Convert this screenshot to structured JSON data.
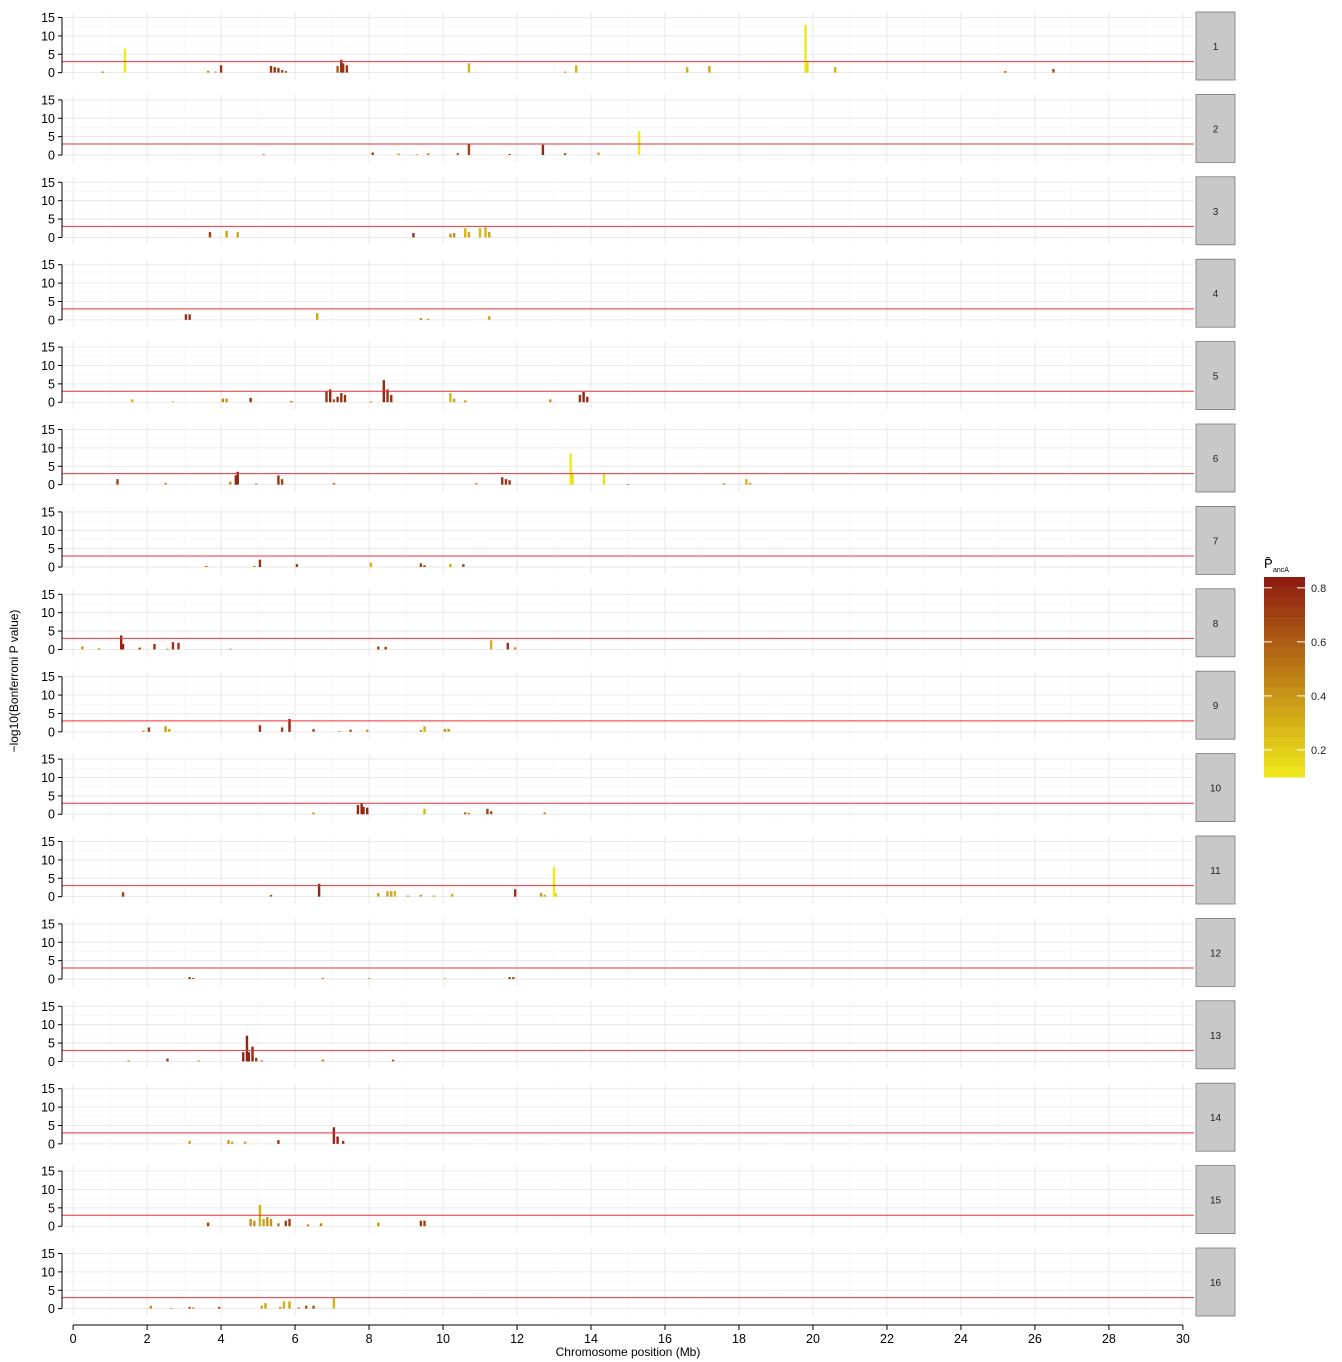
{
  "chart_data": {
    "type": "bar",
    "xlabel": "Chromosome position (Mb)",
    "ylabel": "−log10(Bonferroni P value)",
    "xlim": [
      -0.3,
      30.3
    ],
    "ylim": [
      -2,
      16.5
    ],
    "x_ticks": [
      "0",
      "2",
      "4",
      "6",
      "8",
      "10",
      "12",
      "14",
      "16",
      "18",
      "20",
      "22",
      "24",
      "26",
      "28",
      "30"
    ],
    "y_ticks": [
      "0",
      "5",
      "10",
      "15"
    ],
    "threshold": 3,
    "threshold_color": "#e8343a",
    "legend": {
      "title": "P̃",
      "title_sub": "ancA",
      "ticks": [
        "0.2",
        "0.4",
        "0.6",
        "0.8"
      ],
      "tick_values": [
        0.2,
        0.4,
        0.6,
        0.8
      ],
      "range": [
        0.1,
        0.84
      ],
      "color_low": "#f0ea1a",
      "color_high": "#8e1a12"
    },
    "panels": [
      {
        "label": "1",
        "bars": [
          [
            0.8,
            0.3,
            0.5
          ],
          [
            1.4,
            6.5,
            0.1
          ],
          [
            3.65,
            0.5,
            0.45
          ],
          [
            3.85,
            0.3,
            0.35
          ],
          [
            4,
            2,
            0.75
          ],
          [
            5.35,
            1.8,
            0.75
          ],
          [
            5.45,
            1.5,
            0.75
          ],
          [
            5.55,
            1.3,
            0.7
          ],
          [
            5.65,
            0.7,
            0.7
          ],
          [
            5.75,
            0.4,
            0.7
          ],
          [
            7.15,
            1.8,
            0.6
          ],
          [
            7.25,
            3.5,
            0.8
          ],
          [
            7.3,
            2.5,
            0.75
          ],
          [
            7.4,
            2,
            0.75
          ],
          [
            10.7,
            2.5,
            0.3
          ],
          [
            13.3,
            0.3,
            0.4
          ],
          [
            13.6,
            2,
            0.3
          ],
          [
            16.6,
            1.5,
            0.3
          ],
          [
            17.2,
            1.8,
            0.35
          ],
          [
            19.8,
            13,
            0.1
          ],
          [
            19.85,
            3,
            0.15
          ],
          [
            20.6,
            1.5,
            0.3
          ],
          [
            25.2,
            0.4,
            0.6
          ],
          [
            26.5,
            1,
            0.65
          ]
        ]
      },
      {
        "label": "2",
        "bars": [
          [
            5.15,
            0.2,
            0.6
          ],
          [
            8.1,
            0.7,
            0.7
          ],
          [
            8.8,
            0.4,
            0.35
          ],
          [
            9.3,
            0.2,
            0.4
          ],
          [
            9.6,
            0.5,
            0.4
          ],
          [
            10.4,
            0.5,
            0.6
          ],
          [
            10.7,
            3,
            0.7
          ],
          [
            11.8,
            0.3,
            0.6
          ],
          [
            12.7,
            2.8,
            0.8
          ],
          [
            13.3,
            0.5,
            0.65
          ],
          [
            14.2,
            0.7,
            0.35
          ],
          [
            15.3,
            6.5,
            0.1
          ]
        ]
      },
      {
        "label": "3",
        "bars": [
          [
            3.7,
            1.5,
            0.7
          ],
          [
            4.15,
            1.8,
            0.35
          ],
          [
            4.45,
            1.5,
            0.35
          ],
          [
            9.2,
            1.2,
            0.75
          ],
          [
            10.2,
            1,
            0.4
          ],
          [
            10.3,
            1.2,
            0.4
          ],
          [
            10.6,
            2.5,
            0.3
          ],
          [
            10.7,
            1.5,
            0.35
          ],
          [
            11,
            2.5,
            0.3
          ],
          [
            11.15,
            2.8,
            0.3
          ],
          [
            11.25,
            1.5,
            0.35
          ]
        ]
      },
      {
        "label": "4",
        "bars": [
          [
            3.05,
            1.5,
            0.75
          ],
          [
            3.15,
            1.5,
            0.75
          ],
          [
            6.6,
            1.8,
            0.35
          ],
          [
            9.4,
            0.5,
            0.4
          ],
          [
            9.6,
            0.3,
            0.4
          ],
          [
            11.25,
            1,
            0.35
          ]
        ]
      },
      {
        "label": "5",
        "bars": [
          [
            1.6,
            0.8,
            0.3
          ],
          [
            2.7,
            0.2,
            0.45
          ],
          [
            4.05,
            1,
            0.45
          ],
          [
            4.15,
            1,
            0.4
          ],
          [
            4.8,
            1.2,
            0.75
          ],
          [
            5.9,
            0.3,
            0.6
          ],
          [
            6.85,
            3,
            0.75
          ],
          [
            6.95,
            3.5,
            0.8
          ],
          [
            7.05,
            0.8,
            0.65
          ],
          [
            7.15,
            1.5,
            0.75
          ],
          [
            7.25,
            2.5,
            0.75
          ],
          [
            7.35,
            2,
            0.75
          ],
          [
            8.05,
            0.2,
            0.6
          ],
          [
            8.4,
            6,
            0.8
          ],
          [
            8.5,
            3.5,
            0.75
          ],
          [
            8.6,
            2,
            0.75
          ],
          [
            10.2,
            2.5,
            0.3
          ],
          [
            10.3,
            1,
            0.35
          ],
          [
            10.6,
            0.5,
            0.4
          ],
          [
            12.9,
            0.8,
            0.4
          ],
          [
            13.7,
            2,
            0.75
          ],
          [
            13.8,
            2.8,
            0.8
          ],
          [
            13.9,
            1.5,
            0.75
          ]
        ]
      },
      {
        "label": "6",
        "bars": [
          [
            1.2,
            1.5,
            0.7
          ],
          [
            2.5,
            0.5,
            0.4
          ],
          [
            4.25,
            0.8,
            0.4
          ],
          [
            4.4,
            2.5,
            0.8
          ],
          [
            4.45,
            3.5,
            0.8
          ],
          [
            4.95,
            0.3,
            0.5
          ],
          [
            5.55,
            2.5,
            0.75
          ],
          [
            5.65,
            1.5,
            0.7
          ],
          [
            7.05,
            0.5,
            0.45
          ],
          [
            10.9,
            0.5,
            0.35
          ],
          [
            11.6,
            2,
            0.75
          ],
          [
            11.7,
            1.5,
            0.75
          ],
          [
            11.8,
            1.2,
            0.75
          ],
          [
            13.45,
            8.5,
            0.1
          ],
          [
            13.5,
            3,
            0.15
          ],
          [
            14.35,
            3,
            0.15
          ],
          [
            15,
            0.2,
            0.5
          ],
          [
            17.6,
            0.3,
            0.55
          ],
          [
            18.2,
            1.5,
            0.3
          ],
          [
            18.3,
            0.5,
            0.35
          ]
        ]
      },
      {
        "label": "7",
        "bars": [
          [
            3.6,
            0.3,
            0.6
          ],
          [
            4.9,
            0.3,
            0.5
          ],
          [
            5.05,
            2,
            0.75
          ],
          [
            6.05,
            0.8,
            0.7
          ],
          [
            8.05,
            1.2,
            0.3
          ],
          [
            9.4,
            1,
            0.7
          ],
          [
            9.5,
            0.5,
            0.65
          ],
          [
            10.2,
            0.8,
            0.35
          ],
          [
            10.55,
            0.8,
            0.65
          ]
        ]
      },
      {
        "label": "8",
        "bars": [
          [
            0.25,
            0.8,
            0.4
          ],
          [
            0.7,
            0.3,
            0.5
          ],
          [
            1.3,
            3.8,
            0.8
          ],
          [
            1.35,
            1.5,
            0.8
          ],
          [
            1.8,
            0.5,
            0.7
          ],
          [
            2.2,
            1.5,
            0.75
          ],
          [
            2.55,
            0.2,
            0.5
          ],
          [
            2.7,
            2,
            0.75
          ],
          [
            2.85,
            1.8,
            0.75
          ],
          [
            4.25,
            0.2,
            0.5
          ],
          [
            8.25,
            0.8,
            0.7
          ],
          [
            8.45,
            0.7,
            0.7
          ],
          [
            11.3,
            2.5,
            0.3
          ],
          [
            11.75,
            1.8,
            0.75
          ],
          [
            11.95,
            0.6,
            0.4
          ]
        ]
      },
      {
        "label": "9",
        "bars": [
          [
            1.9,
            0.3,
            0.5
          ],
          [
            2.05,
            1.2,
            0.7
          ],
          [
            2.5,
            1.5,
            0.4
          ],
          [
            2.6,
            0.8,
            0.35
          ],
          [
            5.05,
            1.8,
            0.75
          ],
          [
            5.65,
            1.2,
            0.7
          ],
          [
            5.85,
            3.5,
            0.8
          ],
          [
            6.5,
            0.8,
            0.65
          ],
          [
            7.2,
            0.2,
            0.5
          ],
          [
            7.5,
            0.6,
            0.65
          ],
          [
            7.95,
            0.6,
            0.4
          ],
          [
            9.4,
            0.5,
            0.4
          ],
          [
            9.5,
            1.5,
            0.3
          ],
          [
            10.05,
            0.8,
            0.4
          ],
          [
            10.15,
            0.8,
            0.4
          ]
        ]
      },
      {
        "label": "10",
        "bars": [
          [
            6.5,
            0.5,
            0.4
          ],
          [
            7.7,
            2.5,
            0.8
          ],
          [
            7.8,
            3,
            0.8
          ],
          [
            7.85,
            2,
            0.8
          ],
          [
            7.95,
            1.8,
            0.8
          ],
          [
            9.5,
            1.5,
            0.3
          ],
          [
            10.6,
            0.5,
            0.6
          ],
          [
            10.7,
            0.3,
            0.55
          ],
          [
            11.2,
            1.5,
            0.7
          ],
          [
            11.3,
            0.8,
            0.7
          ],
          [
            12.75,
            0.5,
            0.45
          ]
        ]
      },
      {
        "label": "11",
        "bars": [
          [
            1.35,
            1.2,
            0.7
          ],
          [
            5.35,
            0.5,
            0.6
          ],
          [
            6.65,
            3.5,
            0.8
          ],
          [
            8.25,
            1,
            0.35
          ],
          [
            8.5,
            1.5,
            0.35
          ],
          [
            8.6,
            1.5,
            0.35
          ],
          [
            8.7,
            1.5,
            0.3
          ],
          [
            9.05,
            0.3,
            0.4
          ],
          [
            9.4,
            0.5,
            0.4
          ],
          [
            9.75,
            0.3,
            0.35
          ],
          [
            10.25,
            0.8,
            0.3
          ],
          [
            11.95,
            2,
            0.75
          ],
          [
            12.65,
            1,
            0.4
          ],
          [
            12.75,
            0.5,
            0.35
          ],
          [
            13,
            8,
            0.1
          ],
          [
            13.05,
            1,
            0.15
          ]
        ]
      },
      {
        "label": "12",
        "bars": [
          [
            3.15,
            0.5,
            0.75
          ],
          [
            3.25,
            0.3,
            0.7
          ],
          [
            6.75,
            0.3,
            0.45
          ],
          [
            8,
            0.2,
            0.5
          ],
          [
            10.05,
            0.2,
            0.4
          ],
          [
            11.8,
            0.5,
            0.75
          ],
          [
            11.9,
            0.5,
            0.75
          ]
        ]
      },
      {
        "label": "13",
        "bars": [
          [
            1.5,
            0.3,
            0.4
          ],
          [
            2.55,
            0.8,
            0.7
          ],
          [
            3.4,
            0.3,
            0.4
          ],
          [
            4.6,
            2.5,
            0.8
          ],
          [
            4.7,
            7,
            0.8
          ],
          [
            4.75,
            2.5,
            0.8
          ],
          [
            4.85,
            4,
            0.8
          ],
          [
            4.95,
            1,
            0.7
          ],
          [
            5.1,
            0.3,
            0.55
          ],
          [
            6.75,
            0.5,
            0.45
          ],
          [
            8.65,
            0.5,
            0.6
          ]
        ]
      },
      {
        "label": "14",
        "bars": [
          [
            3.15,
            0.8,
            0.35
          ],
          [
            4.2,
            1,
            0.4
          ],
          [
            4.3,
            0.6,
            0.35
          ],
          [
            4.65,
            0.6,
            0.35
          ],
          [
            5.55,
            1,
            0.75
          ],
          [
            7.05,
            4.5,
            0.8
          ],
          [
            7.15,
            2,
            0.8
          ],
          [
            7.3,
            0.8,
            0.75
          ]
        ]
      },
      {
        "label": "15",
        "bars": [
          [
            3.65,
            1,
            0.7
          ],
          [
            4.8,
            2,
            0.4
          ],
          [
            4.9,
            1.5,
            0.4
          ],
          [
            5.05,
            5.8,
            0.3
          ],
          [
            5.15,
            2,
            0.35
          ],
          [
            5.25,
            2.5,
            0.4
          ],
          [
            5.35,
            2,
            0.4
          ],
          [
            5.55,
            0.8,
            0.5
          ],
          [
            5.75,
            1.5,
            0.7
          ],
          [
            5.85,
            2,
            0.7
          ],
          [
            6.35,
            0.5,
            0.45
          ],
          [
            6.7,
            0.8,
            0.45
          ],
          [
            8.25,
            1,
            0.4
          ],
          [
            9.4,
            1.5,
            0.7
          ],
          [
            9.5,
            1.5,
            0.7
          ]
        ]
      },
      {
        "label": "16",
        "bars": [
          [
            2.1,
            0.8,
            0.4
          ],
          [
            2.65,
            0.2,
            0.45
          ],
          [
            3.15,
            0.5,
            0.6
          ],
          [
            3.25,
            0.3,
            0.55
          ],
          [
            3.95,
            0.5,
            0.65
          ],
          [
            5.1,
            0.8,
            0.35
          ],
          [
            5.2,
            1.5,
            0.35
          ],
          [
            5.6,
            0.5,
            0.4
          ],
          [
            5.7,
            2,
            0.3
          ],
          [
            5.85,
            2,
            0.35
          ],
          [
            6.1,
            0.3,
            0.55
          ],
          [
            6.3,
            0.8,
            0.65
          ],
          [
            6.5,
            0.8,
            0.65
          ],
          [
            7.05,
            3,
            0.3
          ]
        ]
      }
    ]
  }
}
